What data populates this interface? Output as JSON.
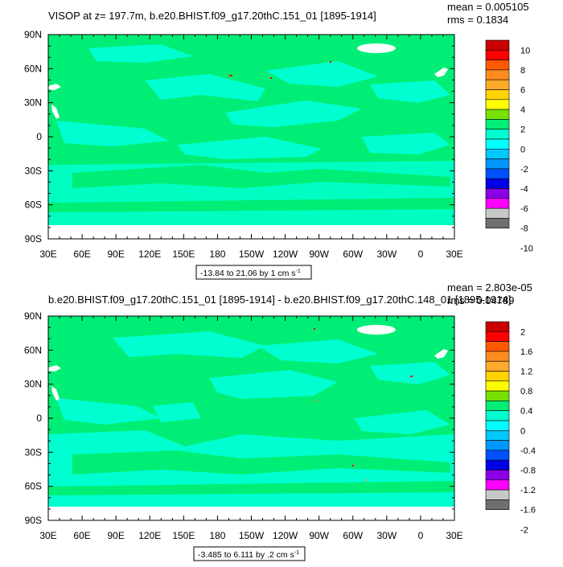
{
  "panels": [
    {
      "title": "VISOP at z= 197.7m, b.e20.BHIST.f09_g17.20thC.151_01 [1895-1914]",
      "stats": [
        "mean = 0.005105",
        "rms = 0.1834"
      ],
      "range_label": "-13.84 to 21.06 by 1 cm s",
      "range_unit_sup": "-1",
      "colorbar_labels": [
        "10",
        "8",
        "6",
        "4",
        "2",
        "0",
        "-2",
        "-4",
        "-6",
        "-8",
        "-10"
      ]
    },
    {
      "title": "b.e20.BHIST.f09_g17.20thC.151_01 [1895-1914] - b.e20.BHIST.f09_g17.20thC.148_01 [1895-1914]",
      "stats": [
        "mean = 2.803e-05",
        "rms = 0.04789"
      ],
      "range_label": "-3.485 to 6.111 by .2 cm s",
      "range_unit_sup": "-1",
      "colorbar_labels": [
        "2",
        "1.6",
        "1.2",
        "0.8",
        "0.4",
        "0",
        "-0.4",
        "-0.8",
        "-1.2",
        "-1.6",
        "-2"
      ]
    }
  ],
  "colors": {
    "land": "#ffffff",
    "ocean_base": "#00ee76",
    "ocean_alt": "#00ffd0",
    "colorbar": [
      "#c80000",
      "#ff0000",
      "#ff5a00",
      "#ff8c1e",
      "#ffaa2a",
      "#ffd200",
      "#ffff00",
      "#78e100",
      "#00ee76",
      "#00ffd0",
      "#00ffff",
      "#00c8ff",
      "#0096ff",
      "#0050ff",
      "#0000e6",
      "#8c00e6",
      "#ff00ff",
      "#c8c8c8",
      "#707070"
    ]
  },
  "chart_data": [
    {
      "type": "heatmap",
      "title": "VISOP at z= 197.7m, b.e20.BHIST.f09_g17.20thC.151_01 [1895-1914]",
      "xlabel": "",
      "ylabel": "",
      "x_ticks": [
        "30E",
        "60E",
        "90E",
        "120E",
        "150E",
        "180",
        "150W",
        "120W",
        "90W",
        "60W",
        "30W",
        "0",
        "30E"
      ],
      "y_ticks": [
        "90N",
        "60N",
        "30N",
        "0",
        "30S",
        "60S",
        "90S"
      ],
      "xlim": [
        30,
        390
      ],
      "ylim": [
        -90,
        90
      ],
      "contour_levels": [
        -10,
        -9,
        -8,
        -7,
        -6,
        -5,
        -4,
        -3,
        -2,
        -1,
        0,
        1,
        2,
        3,
        4,
        5,
        6,
        7,
        8,
        9,
        10
      ],
      "min": -13.84,
      "max": 21.06,
      "interval": 1,
      "units": "cm s-1",
      "mean": 0.005105,
      "rms": 0.1834
    },
    {
      "type": "heatmap",
      "title": "b.e20.BHIST.f09_g17.20thC.151_01 [1895-1914] - b.e20.BHIST.f09_g17.20thC.148_01 [1895-1914]",
      "xlabel": "",
      "ylabel": "",
      "x_ticks": [
        "30E",
        "60E",
        "90E",
        "120E",
        "150E",
        "180",
        "150W",
        "120W",
        "90W",
        "60W",
        "30W",
        "0",
        "30E"
      ],
      "y_ticks": [
        "90N",
        "60N",
        "30N",
        "0",
        "30S",
        "60S",
        "90S"
      ],
      "xlim": [
        30,
        390
      ],
      "ylim": [
        -90,
        90
      ],
      "contour_levels": [
        -2,
        -1.8,
        -1.6,
        -1.4,
        -1.2,
        -1,
        -0.8,
        -0.6,
        -0.4,
        -0.2,
        0,
        0.2,
        0.4,
        0.6,
        0.8,
        1,
        1.2,
        1.4,
        1.6,
        1.8,
        2
      ],
      "min": -3.485,
      "max": 6.111,
      "interval": 0.2,
      "units": "cm s-1",
      "mean": 2.803e-05,
      "rms": 0.04789
    }
  ]
}
